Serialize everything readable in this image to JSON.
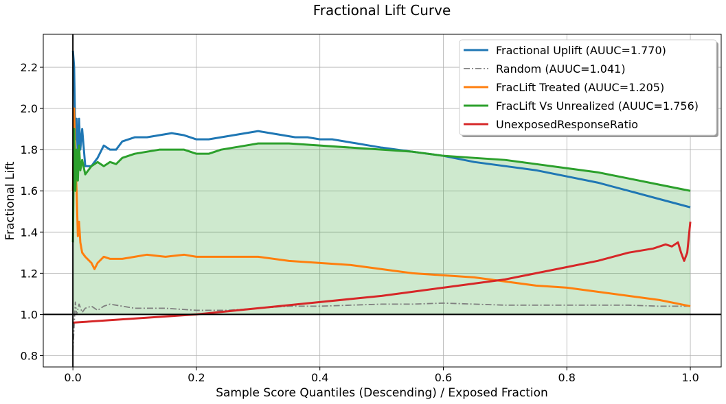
{
  "chart_data": {
    "type": "line",
    "title": "Fractional Lift Curve",
    "xlabel": "Sample Score Quantiles (Descending) / Exposed Fraction",
    "ylabel": "Fractional Lift",
    "xlim": [
      -0.048,
      1.05
    ],
    "ylim": [
      0.745,
      2.36
    ],
    "xticks": [
      0.0,
      0.2,
      0.4,
      0.6,
      0.8,
      1.0
    ],
    "xtick_labels": [
      "0.0",
      "0.2",
      "0.4",
      "0.6",
      "0.8",
      "1.0"
    ],
    "yticks": [
      0.8,
      1.0,
      1.2,
      1.4,
      1.6,
      1.8,
      2.0,
      2.2
    ],
    "ytick_labels": [
      "0.8",
      "1.0",
      "1.2",
      "1.4",
      "1.6",
      "1.8",
      "2.0",
      "2.2"
    ],
    "grid": true,
    "legend_position": "top-right",
    "reference_lines": {
      "x": 0.0,
      "y": 1.0
    },
    "fill_between": {
      "series": "FracLift Vs Unrealized (AUUC=1.756)",
      "baseline": 1.0,
      "color": "#2ca02c"
    },
    "series": [
      {
        "name": "Fractional Uplift (AUUC=1.770)",
        "color": "#1f77b4",
        "style": "solid",
        "x": [
          0.0,
          0.002,
          0.004,
          0.006,
          0.008,
          0.01,
          0.012,
          0.015,
          0.02,
          0.03,
          0.04,
          0.05,
          0.06,
          0.07,
          0.08,
          0.1,
          0.12,
          0.14,
          0.16,
          0.18,
          0.2,
          0.22,
          0.24,
          0.26,
          0.28,
          0.3,
          0.32,
          0.34,
          0.36,
          0.38,
          0.4,
          0.42,
          0.44,
          0.46,
          0.48,
          0.5,
          0.55,
          0.6,
          0.65,
          0.7,
          0.75,
          0.8,
          0.85,
          0.9,
          0.95,
          1.0
        ],
        "y": [
          2.28,
          2.2,
          1.85,
          1.95,
          1.75,
          1.95,
          1.8,
          1.9,
          1.72,
          1.72,
          1.76,
          1.82,
          1.8,
          1.8,
          1.84,
          1.86,
          1.86,
          1.87,
          1.88,
          1.87,
          1.85,
          1.85,
          1.86,
          1.87,
          1.88,
          1.89,
          1.88,
          1.87,
          1.86,
          1.86,
          1.85,
          1.85,
          1.84,
          1.83,
          1.82,
          1.81,
          1.79,
          1.77,
          1.74,
          1.72,
          1.7,
          1.67,
          1.64,
          1.6,
          1.56,
          1.52
        ]
      },
      {
        "name": "Random (AUUC=1.041)",
        "color": "#7f7f7f",
        "style": "dashdot",
        "x": [
          0.0,
          0.002,
          0.004,
          0.006,
          0.01,
          0.015,
          0.02,
          0.03,
          0.04,
          0.05,
          0.06,
          0.08,
          0.1,
          0.15,
          0.2,
          0.25,
          0.3,
          0.35,
          0.4,
          0.45,
          0.5,
          0.55,
          0.6,
          0.65,
          0.7,
          0.75,
          0.8,
          0.85,
          0.9,
          0.95,
          1.0
        ],
        "y": [
          0.82,
          0.95,
          1.06,
          1.0,
          1.05,
          1.01,
          1.03,
          1.04,
          1.02,
          1.04,
          1.05,
          1.04,
          1.03,
          1.03,
          1.02,
          1.02,
          1.03,
          1.04,
          1.04,
          1.045,
          1.05,
          1.05,
          1.055,
          1.05,
          1.045,
          1.045,
          1.045,
          1.045,
          1.045,
          1.04,
          1.04
        ]
      },
      {
        "name": "FracLift Treated (AUUC=1.205)",
        "color": "#ff7f0e",
        "style": "solid",
        "x": [
          0.0,
          0.002,
          0.004,
          0.006,
          0.008,
          0.01,
          0.012,
          0.015,
          0.02,
          0.03,
          0.035,
          0.04,
          0.05,
          0.06,
          0.08,
          0.1,
          0.12,
          0.15,
          0.18,
          0.2,
          0.25,
          0.3,
          0.35,
          0.4,
          0.45,
          0.5,
          0.55,
          0.6,
          0.65,
          0.7,
          0.75,
          0.8,
          0.85,
          0.9,
          0.95,
          1.0
        ],
        "y": [
          1.6,
          2.0,
          1.75,
          1.6,
          1.38,
          1.45,
          1.35,
          1.3,
          1.28,
          1.25,
          1.22,
          1.25,
          1.28,
          1.27,
          1.27,
          1.28,
          1.29,
          1.28,
          1.29,
          1.28,
          1.28,
          1.28,
          1.26,
          1.25,
          1.24,
          1.22,
          1.2,
          1.19,
          1.18,
          1.16,
          1.14,
          1.13,
          1.11,
          1.09,
          1.07,
          1.04
        ]
      },
      {
        "name": "FracLift Vs Unrealized (AUUC=1.756)",
        "color": "#2ca02c",
        "style": "solid",
        "x": [
          0.0,
          0.002,
          0.004,
          0.006,
          0.008,
          0.01,
          0.012,
          0.015,
          0.02,
          0.03,
          0.04,
          0.05,
          0.06,
          0.07,
          0.08,
          0.1,
          0.12,
          0.14,
          0.16,
          0.18,
          0.2,
          0.22,
          0.24,
          0.26,
          0.28,
          0.3,
          0.35,
          0.4,
          0.45,
          0.5,
          0.55,
          0.6,
          0.65,
          0.7,
          0.75,
          0.8,
          0.85,
          0.9,
          0.95,
          1.0
        ],
        "y": [
          1.35,
          1.9,
          1.6,
          1.8,
          1.65,
          1.82,
          1.7,
          1.75,
          1.68,
          1.72,
          1.74,
          1.72,
          1.74,
          1.73,
          1.76,
          1.78,
          1.79,
          1.8,
          1.8,
          1.8,
          1.78,
          1.78,
          1.8,
          1.81,
          1.82,
          1.83,
          1.83,
          1.82,
          1.81,
          1.8,
          1.79,
          1.77,
          1.76,
          1.75,
          1.73,
          1.71,
          1.69,
          1.66,
          1.63,
          1.6
        ]
      },
      {
        "name": "UnexposedResponseRatio",
        "color": "#d62728",
        "style": "solid",
        "x": [
          0.0,
          0.05,
          0.1,
          0.15,
          0.2,
          0.25,
          0.3,
          0.35,
          0.4,
          0.45,
          0.5,
          0.55,
          0.6,
          0.65,
          0.7,
          0.75,
          0.8,
          0.85,
          0.9,
          0.92,
          0.94,
          0.96,
          0.97,
          0.98,
          0.985,
          0.99,
          0.995,
          1.0
        ],
        "y": [
          0.96,
          0.97,
          0.98,
          0.99,
          1.0,
          1.015,
          1.03,
          1.045,
          1.06,
          1.075,
          1.09,
          1.11,
          1.13,
          1.15,
          1.17,
          1.2,
          1.23,
          1.26,
          1.3,
          1.31,
          1.32,
          1.34,
          1.33,
          1.35,
          1.3,
          1.26,
          1.3,
          1.45
        ]
      }
    ]
  }
}
